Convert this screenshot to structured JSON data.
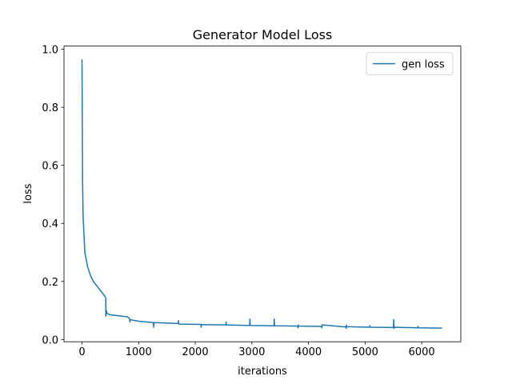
{
  "chart_data": {
    "type": "line",
    "title": "Generator Model Loss",
    "x_label": "iterations",
    "y_label": "loss",
    "x": [
      0,
      10,
      20,
      50,
      100,
      150,
      200,
      300,
      400,
      420,
      421,
      430,
      440,
      500,
      800,
      840,
      845,
      850,
      1000,
      1260,
      1265,
      1270,
      1700,
      1705,
      1710,
      2100,
      2105,
      2110,
      2540,
      2545,
      2550,
      2960,
      2965,
      2970,
      3390,
      3395,
      3400,
      3810,
      3815,
      3820,
      3830,
      4230,
      4235,
      4240,
      4660,
      4665,
      4670,
      4680,
      5080,
      5085,
      5090,
      5500,
      5505,
      5510,
      5520,
      5930,
      5935,
      5940,
      6360
    ],
    "series": [
      {
        "name": "gen loss",
        "color": "#1f77b4",
        "values": [
          0.965,
          0.55,
          0.42,
          0.3,
          0.25,
          0.22,
          0.2,
          0.175,
          0.15,
          0.143,
          0.08,
          0.1,
          0.09,
          0.085,
          0.078,
          0.072,
          0.06,
          0.068,
          0.063,
          0.058,
          0.042,
          0.058,
          0.055,
          0.065,
          0.053,
          0.052,
          0.042,
          0.051,
          0.05,
          0.06,
          0.05,
          0.048,
          0.07,
          0.048,
          0.047,
          0.07,
          0.047,
          0.046,
          0.04,
          0.05,
          0.046,
          0.045,
          0.04,
          0.05,
          0.043,
          0.038,
          0.049,
          0.044,
          0.042,
          0.047,
          0.042,
          0.041,
          0.068,
          0.038,
          0.042,
          0.04,
          0.045,
          0.04,
          0.039
        ]
      }
    ],
    "xlim": [
      -318,
      6690
    ],
    "ylim": [
      -0.008,
      1.011
    ],
    "xticks": [
      0,
      1000,
      2000,
      3000,
      4000,
      5000,
      6000
    ],
    "yticks": [
      {
        "value": 0,
        "label": "0.0"
      },
      0.2,
      0.4,
      0.6,
      0.8,
      {
        "value": 1,
        "label": "1.0"
      }
    ],
    "legend": "upper right"
  }
}
